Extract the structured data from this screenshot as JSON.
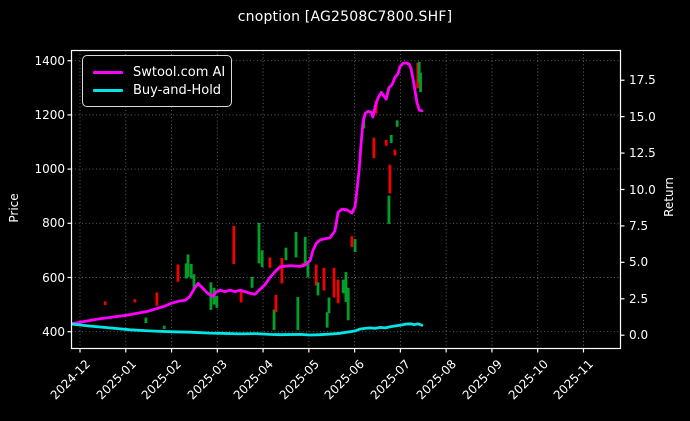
{
  "title": "cnoption [AG2508C7800.SHF]",
  "legend": {
    "items": [
      {
        "label": "Swtool.com AI",
        "color": "#ff00ff"
      },
      {
        "label": "Buy-and-Hold",
        "color": "#00e5e5"
      }
    ]
  },
  "axes": {
    "left": {
      "label": "Price",
      "ticks": [
        400,
        600,
        800,
        1000,
        1200,
        1400
      ]
    },
    "right": {
      "label": "Return",
      "ticks": [
        "0.0",
        "2.5",
        "5.0",
        "7.5",
        "10.0",
        "12.5",
        "15.0",
        "17.5"
      ]
    },
    "x": {
      "ticks": [
        "2024-12",
        "2025-01",
        "2025-02",
        "2025-03",
        "2025-04",
        "2025-05",
        "2025-06",
        "2025-07",
        "2025-08",
        "2025-09",
        "2025-10",
        "2025-11"
      ]
    }
  },
  "chart_data": {
    "type": "line",
    "overlay": "candlestick",
    "title": "cnoption [AG2508C7800.SHF]",
    "x_unit": "months since 2024-12 tick",
    "x_tick_labels": [
      "2024-12",
      "2025-01",
      "2025-02",
      "2025-03",
      "2025-04",
      "2025-05",
      "2025-06",
      "2025-07",
      "2025-08",
      "2025-09",
      "2025-10",
      "2025-11"
    ],
    "ylabel_left": "Price",
    "ylabel_right": "Return",
    "price_ticks": [
      400,
      600,
      800,
      1000,
      1200,
      1400
    ],
    "return_ticks": [
      0.0,
      2.5,
      5.0,
      7.5,
      10.0,
      12.5,
      15.0,
      17.5
    ],
    "x_lim": [
      -0.19,
      11.81
    ],
    "price_lim": [
      338,
      1437
    ],
    "return_lim": [
      -0.91,
      19.5
    ],
    "grid": true,
    "legend_position": "upper-left",
    "series": [
      {
        "name": "Swtool.com AI",
        "color": "#ff00ff",
        "width": 2.8,
        "points": [
          [
            -0.17,
            430
          ],
          [
            0.4,
            447
          ],
          [
            1.0,
            460
          ],
          [
            1.5,
            476
          ],
          [
            1.86,
            495
          ],
          [
            2.0,
            505
          ],
          [
            2.15,
            512
          ],
          [
            2.3,
            516
          ],
          [
            2.4,
            530
          ],
          [
            2.5,
            560
          ],
          [
            2.58,
            578
          ],
          [
            2.67,
            563
          ],
          [
            2.75,
            548
          ],
          [
            2.84,
            535
          ],
          [
            2.91,
            531
          ],
          [
            2.97,
            546
          ],
          [
            3.06,
            553
          ],
          [
            3.17,
            548
          ],
          [
            3.28,
            553
          ],
          [
            3.39,
            548
          ],
          [
            3.5,
            553
          ],
          [
            3.6,
            548
          ],
          [
            3.71,
            542
          ],
          [
            3.82,
            538
          ],
          [
            3.93,
            556
          ],
          [
            4.04,
            573
          ],
          [
            4.15,
            600
          ],
          [
            4.26,
            621
          ],
          [
            4.37,
            639
          ],
          [
            4.59,
            644
          ],
          [
            4.81,
            641
          ],
          [
            4.92,
            646
          ],
          [
            5.03,
            663
          ],
          [
            5.09,
            700
          ],
          [
            5.16,
            726
          ],
          [
            5.24,
            738
          ],
          [
            5.35,
            743
          ],
          [
            5.46,
            746
          ],
          [
            5.57,
            772
          ],
          [
            5.64,
            840
          ],
          [
            5.72,
            852
          ],
          [
            5.83,
            850
          ],
          [
            5.94,
            838
          ],
          [
            6.01,
            862
          ],
          [
            6.05,
            920
          ],
          [
            6.1,
            1000
          ],
          [
            6.14,
            1090
          ],
          [
            6.18,
            1170
          ],
          [
            6.23,
            1205
          ],
          [
            6.29,
            1213
          ],
          [
            6.36,
            1210
          ],
          [
            6.4,
            1192
          ],
          [
            6.45,
            1232
          ],
          [
            6.51,
            1262
          ],
          [
            6.58,
            1283
          ],
          [
            6.64,
            1270
          ],
          [
            6.69,
            1258
          ],
          [
            6.75,
            1300
          ],
          [
            6.82,
            1312
          ],
          [
            6.88,
            1338
          ],
          [
            6.95,
            1352
          ],
          [
            6.99,
            1378
          ],
          [
            7.06,
            1390
          ],
          [
            7.12,
            1392
          ],
          [
            7.19,
            1388
          ],
          [
            7.23,
            1372
          ],
          [
            7.28,
            1330
          ],
          [
            7.32,
            1290
          ],
          [
            7.36,
            1246
          ],
          [
            7.41,
            1218
          ],
          [
            7.47,
            1215
          ]
        ]
      },
      {
        "name": "Buy-and-Hold",
        "color": "#00e5e5",
        "width": 2.8,
        "points": [
          [
            -0.17,
            428
          ],
          [
            0.2,
            421
          ],
          [
            0.65,
            414
          ],
          [
            1.1,
            407
          ],
          [
            1.5,
            403
          ],
          [
            1.95,
            400
          ],
          [
            2.4,
            398
          ],
          [
            2.84,
            395
          ],
          [
            3.06,
            394
          ],
          [
            3.5,
            392
          ],
          [
            3.82,
            393
          ],
          [
            4.15,
            390
          ],
          [
            4.37,
            389
          ],
          [
            4.81,
            390
          ],
          [
            5.03,
            388
          ],
          [
            5.24,
            389
          ],
          [
            5.46,
            391
          ],
          [
            5.68,
            394
          ],
          [
            5.9,
            400
          ],
          [
            6.01,
            403
          ],
          [
            6.12,
            410
          ],
          [
            6.23,
            412
          ],
          [
            6.34,
            414
          ],
          [
            6.45,
            412
          ],
          [
            6.56,
            416
          ],
          [
            6.67,
            414
          ],
          [
            6.78,
            418
          ],
          [
            6.88,
            421
          ],
          [
            6.99,
            424
          ],
          [
            7.12,
            428
          ],
          [
            7.23,
            429
          ],
          [
            7.3,
            426
          ],
          [
            7.38,
            429
          ],
          [
            7.47,
            424
          ]
        ]
      }
    ],
    "candles": [
      [
        0.55,
        498,
        512,
        "r"
      ],
      [
        1.2,
        508,
        520,
        "r"
      ],
      [
        1.44,
        432,
        452,
        "g"
      ],
      [
        1.68,
        496,
        545,
        "r"
      ],
      [
        1.84,
        410,
        422,
        "g"
      ],
      [
        2.14,
        584,
        648,
        "r"
      ],
      [
        2.32,
        596,
        652,
        "g"
      ],
      [
        2.36,
        602,
        685,
        "g"
      ],
      [
        2.43,
        596,
        650,
        "g"
      ],
      [
        2.49,
        560,
        612,
        "g"
      ],
      [
        2.86,
        480,
        582,
        "g"
      ],
      [
        2.93,
        500,
        562,
        "g"
      ],
      [
        2.99,
        488,
        532,
        "g"
      ],
      [
        3.36,
        650,
        790,
        "r"
      ],
      [
        3.52,
        508,
        556,
        "r"
      ],
      [
        3.76,
        562,
        602,
        "g"
      ],
      [
        3.91,
        652,
        802,
        "g"
      ],
      [
        3.98,
        638,
        700,
        "g"
      ],
      [
        4.15,
        636,
        674,
        "r"
      ],
      [
        4.24,
        406,
        482,
        "g"
      ],
      [
        4.28,
        472,
        536,
        "r"
      ],
      [
        4.41,
        578,
        672,
        "r"
      ],
      [
        4.5,
        664,
        710,
        "g"
      ],
      [
        4.72,
        674,
        768,
        "g"
      ],
      [
        4.76,
        406,
        528,
        "g"
      ],
      [
        4.87,
        638,
        654,
        "r"
      ],
      [
        4.92,
        652,
        750,
        "g"
      ],
      [
        4.98,
        600,
        662,
        "g"
      ],
      [
        5.16,
        570,
        648,
        "r"
      ],
      [
        5.2,
        534,
        582,
        "g"
      ],
      [
        5.33,
        552,
        636,
        "r"
      ],
      [
        5.4,
        415,
        472,
        "g"
      ],
      [
        5.44,
        468,
        526,
        "g"
      ],
      [
        5.55,
        526,
        636,
        "r"
      ],
      [
        5.64,
        505,
        592,
        "r"
      ],
      [
        5.75,
        542,
        592,
        "g"
      ],
      [
        5.81,
        510,
        620,
        "g"
      ],
      [
        5.86,
        442,
        562,
        "g"
      ],
      [
        5.94,
        712,
        752,
        "r"
      ],
      [
        6.01,
        694,
        742,
        "g"
      ],
      [
        6.2,
        1150,
        1192,
        "g"
      ],
      [
        6.42,
        1040,
        1116,
        "r"
      ],
      [
        6.47,
        1205,
        1252,
        "r"
      ],
      [
        6.69,
        1086,
        1108,
        "r"
      ],
      [
        6.75,
        798,
        902,
        "g"
      ],
      [
        6.77,
        910,
        1016,
        "r"
      ],
      [
        6.8,
        1096,
        1126,
        "g"
      ],
      [
        6.88,
        1050,
        1072,
        "r"
      ],
      [
        6.93,
        1156,
        1180,
        "g"
      ],
      [
        7.38,
        1298,
        1392,
        "r"
      ],
      [
        7.41,
        1320,
        1396,
        "g"
      ],
      [
        7.44,
        1284,
        1356,
        "g"
      ]
    ],
    "candle_colors": {
      "g": "#00a02a",
      "r": "#f40000"
    },
    "grid_color": "#666666",
    "background": "#000000",
    "frame_color": "#ffffff"
  }
}
